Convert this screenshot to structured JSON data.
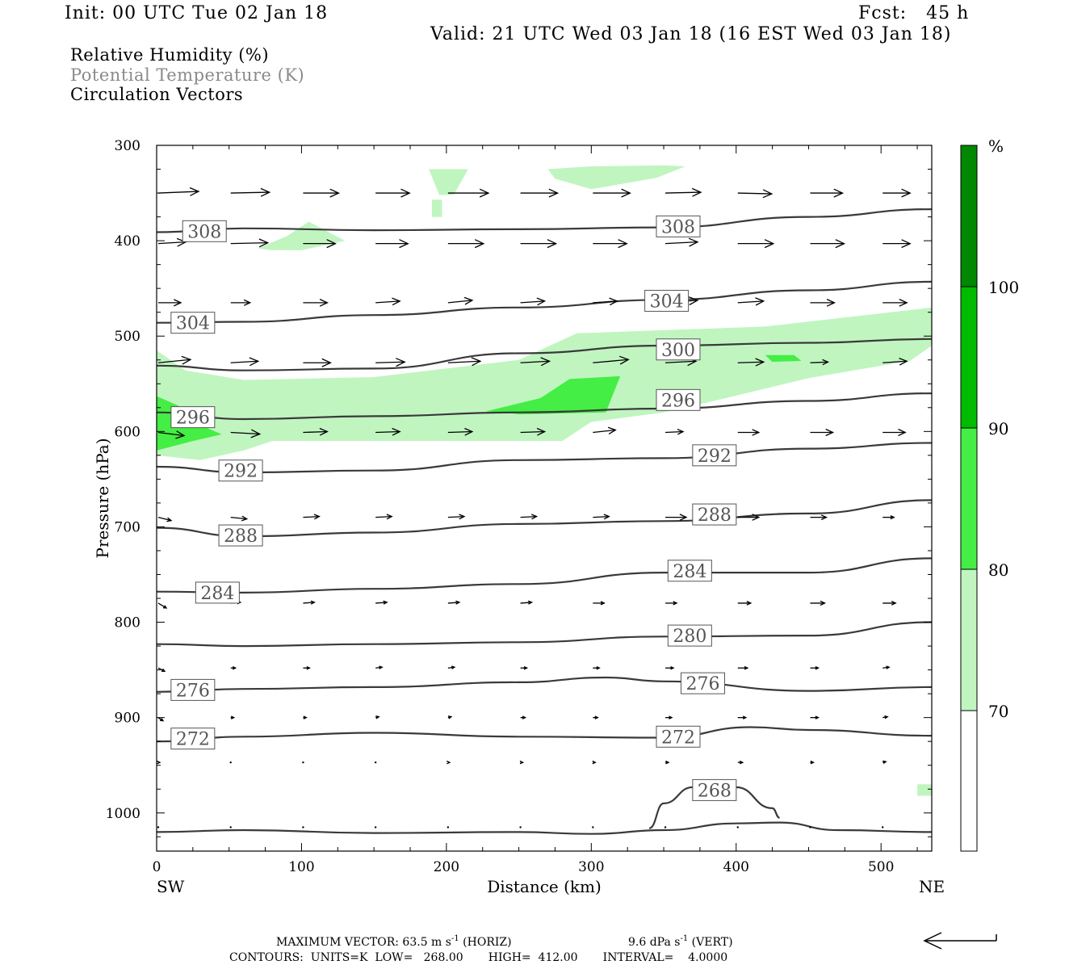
{
  "header": {
    "init": "Init: 00 UTC Tue 02 Jan 18",
    "fcst": "Fcst:   45 h",
    "valid": "Valid: 21 UTC Wed 03 Jan 18 (16 EST Wed 03 Jan 18)"
  },
  "legend_lines": [
    {
      "text": "Relative Humidity (%)",
      "color": "#000000"
    },
    {
      "text": "Potential Temperature (K)",
      "color": "#8a8a8a"
    },
    {
      "text": "Circulation Vectors",
      "color": "#000000"
    }
  ],
  "footer": {
    "max_vector": "MAXIMUM VECTOR:  63.5 m s",
    "max_vector_sup1": "-1",
    "max_vector_horiz": " (HORIZ)",
    "max_vector_vert": "9.6 dPa s",
    "max_vector_sup2": "-1",
    "max_vector_vert_tail": " (VERT)",
    "contours": "CONTOURS:  UNITS=K  LOW=   268.00       HIGH=  412.00       INTERVAL=    4.0000"
  },
  "colorbar": {
    "unit": "%",
    "levels": [
      {
        "value": 70,
        "color": "#c0f5c0"
      },
      {
        "value": 80,
        "color": "#44ee44"
      },
      {
        "value": 90,
        "color": "#00bb00"
      },
      {
        "value": 100,
        "color": "#008800"
      }
    ],
    "labels": [
      "70",
      "80",
      "90",
      "100"
    ]
  },
  "chart_data": {
    "type": "cross-section",
    "xlabel": "Distance (km)",
    "ylabel": "Pressure (hPa)",
    "xlim": [
      0,
      535
    ],
    "ylim": [
      1040,
      300
    ],
    "x_ticks": [
      0,
      100,
      200,
      300,
      400,
      500
    ],
    "x_tick_labels": [
      "0",
      "100",
      "200",
      "300",
      "400",
      "500"
    ],
    "y_ticks": [
      300,
      400,
      500,
      600,
      700,
      800,
      900,
      1000
    ],
    "y_tick_labels": [
      "300",
      "400",
      "500",
      "600",
      "700",
      "800",
      "900",
      "1000"
    ],
    "endpoints": {
      "left": "SW",
      "right": "NE"
    },
    "theta_contours": [
      {
        "label": "308",
        "points": [
          [
            0,
            391
          ],
          [
            60,
            387
          ],
          [
            150,
            389
          ],
          [
            250,
            388
          ],
          [
            350,
            386
          ],
          [
            450,
            375
          ],
          [
            535,
            367
          ]
        ]
      },
      {
        "label": "304",
        "points": [
          [
            0,
            486
          ],
          [
            60,
            485
          ],
          [
            150,
            478
          ],
          [
            250,
            470
          ],
          [
            350,
            462
          ],
          [
            450,
            452
          ],
          [
            535,
            443
          ]
        ]
      },
      {
        "label": "300",
        "points": [
          [
            0,
            531
          ],
          [
            60,
            536
          ],
          [
            150,
            534
          ],
          [
            250,
            518
          ],
          [
            350,
            510
          ],
          [
            450,
            507
          ],
          [
            535,
            503
          ]
        ]
      },
      {
        "label": "296",
        "points": [
          [
            0,
            580
          ],
          [
            60,
            587
          ],
          [
            150,
            584
          ],
          [
            250,
            580
          ],
          [
            350,
            576
          ],
          [
            450,
            568
          ],
          [
            535,
            560
          ]
        ]
      },
      {
        "label": "292",
        "points": [
          [
            0,
            637
          ],
          [
            60,
            643
          ],
          [
            150,
            641
          ],
          [
            250,
            630
          ],
          [
            350,
            628
          ],
          [
            450,
            618
          ],
          [
            535,
            612
          ]
        ]
      },
      {
        "label": "288",
        "points": [
          [
            0,
            701
          ],
          [
            60,
            710
          ],
          [
            150,
            706
          ],
          [
            250,
            697
          ],
          [
            350,
            694
          ],
          [
            450,
            686
          ],
          [
            535,
            672
          ]
        ]
      },
      {
        "label": "284",
        "points": [
          [
            0,
            768
          ],
          [
            60,
            769
          ],
          [
            150,
            765
          ],
          [
            250,
            760
          ],
          [
            350,
            748
          ],
          [
            450,
            748
          ],
          [
            535,
            733
          ]
        ]
      },
      {
        "label": "280",
        "points": [
          [
            0,
            823
          ],
          [
            60,
            825
          ],
          [
            150,
            823
          ],
          [
            250,
            821
          ],
          [
            350,
            815
          ],
          [
            450,
            814
          ],
          [
            535,
            800
          ]
        ]
      },
      {
        "label": "276",
        "points": [
          [
            0,
            873
          ],
          [
            60,
            870
          ],
          [
            150,
            868
          ],
          [
            250,
            863
          ],
          [
            310,
            858
          ],
          [
            350,
            862
          ],
          [
            450,
            872
          ],
          [
            535,
            868
          ]
        ]
      },
      {
        "label": "272",
        "points": [
          [
            0,
            925
          ],
          [
            60,
            920
          ],
          [
            150,
            916
          ],
          [
            250,
            920
          ],
          [
            350,
            921
          ],
          [
            410,
            910
          ],
          [
            450,
            913
          ],
          [
            535,
            919
          ]
        ]
      },
      {
        "label": "268",
        "points": [
          [
            340,
            1016
          ],
          [
            350,
            990
          ],
          [
            370,
            973
          ],
          [
            400,
            973
          ],
          [
            425,
            995
          ],
          [
            430,
            1005
          ]
        ]
      },
      {
        "label": "",
        "points": [
          [
            0,
            1020
          ],
          [
            60,
            1018
          ],
          [
            150,
            1021
          ],
          [
            250,
            1020
          ],
          [
            300,
            1022
          ],
          [
            350,
            1018
          ],
          [
            400,
            1011
          ],
          [
            430,
            1010
          ],
          [
            470,
            1018
          ],
          [
            535,
            1020
          ]
        ]
      }
    ],
    "rh_areas": [
      {
        "level": 70,
        "points": [
          [
            188,
            325
          ],
          [
            215,
            325
          ],
          [
            205,
            352
          ],
          [
            195,
            352
          ]
        ]
      },
      {
        "level": 70,
        "points": [
          [
            190,
            357
          ],
          [
            197,
            357
          ],
          [
            197,
            375
          ],
          [
            190,
            375
          ]
        ]
      },
      {
        "level": 70,
        "points": [
          [
            270,
            325
          ],
          [
            300,
            322
          ],
          [
            350,
            321
          ],
          [
            365,
            322
          ],
          [
            345,
            334
          ],
          [
            300,
            346
          ],
          [
            275,
            335
          ]
        ]
      },
      {
        "level": 70,
        "points": [
          [
            70,
            408
          ],
          [
            90,
            395
          ],
          [
            105,
            380
          ],
          [
            130,
            400
          ],
          [
            100,
            410
          ],
          [
            80,
            410
          ]
        ]
      },
      {
        "level": 70,
        "points": [
          [
            0,
            515
          ],
          [
            20,
            536
          ],
          [
            60,
            546
          ],
          [
            150,
            543
          ],
          [
            250,
            525
          ],
          [
            290,
            497
          ],
          [
            420,
            490
          ],
          [
            535,
            470
          ],
          [
            535,
            510
          ],
          [
            520,
            526
          ],
          [
            450,
            544
          ],
          [
            390,
            566
          ],
          [
            350,
            580
          ],
          [
            300,
            590
          ],
          [
            280,
            610
          ],
          [
            200,
            610
          ],
          [
            150,
            610
          ],
          [
            80,
            610
          ],
          [
            60,
            620
          ],
          [
            30,
            630
          ],
          [
            0,
            625
          ]
        ]
      },
      {
        "level": 80,
        "points": [
          [
            0,
            563
          ],
          [
            15,
            573
          ],
          [
            25,
            590
          ],
          [
            45,
            603
          ],
          [
            25,
            610
          ],
          [
            0,
            620
          ]
        ]
      },
      {
        "level": 80,
        "points": [
          [
            227,
            579
          ],
          [
            265,
            565
          ],
          [
            285,
            545
          ],
          [
            320,
            542
          ],
          [
            310,
            580
          ],
          [
            250,
            582
          ],
          [
            240,
            580
          ]
        ]
      },
      {
        "level": 80,
        "points": [
          [
            420,
            520
          ],
          [
            440,
            520
          ],
          [
            445,
            526
          ],
          [
            425,
            527
          ]
        ]
      },
      {
        "level": 70,
        "points": [
          [
            525,
            970
          ],
          [
            535,
            970
          ],
          [
            535,
            982
          ],
          [
            525,
            982
          ]
        ]
      }
    ],
    "vectors": [
      {
        "p": 350,
        "xs": [
          0,
          50,
          100,
          150,
          200,
          250,
          300,
          350,
          400,
          450,
          500
        ],
        "u": [
          50,
          48,
          44,
          42,
          50,
          46,
          46,
          44,
          42,
          40,
          34
        ],
        "w": [
          -2,
          -1,
          0,
          0,
          0,
          0,
          0,
          -1,
          1,
          0,
          0
        ]
      },
      {
        "p": 403,
        "xs": [
          0,
          50,
          100,
          150,
          200,
          250,
          300,
          350,
          400,
          450,
          500
        ],
        "u": [
          34,
          46,
          40,
          40,
          44,
          44,
          42,
          40,
          44,
          42,
          34
        ],
        "w": [
          -2,
          -1,
          0,
          0,
          0,
          0,
          0,
          -2,
          0,
          0,
          0
        ]
      },
      {
        "p": 465,
        "xs": [
          0,
          50,
          100,
          150,
          200,
          250,
          300,
          350,
          400,
          450,
          500
        ],
        "u": [
          28,
          24,
          30,
          30,
          30,
          30,
          30,
          40,
          32,
          30,
          30
        ],
        "w": [
          0,
          0,
          0,
          -2,
          -3,
          -2,
          -2,
          -3,
          -2,
          0,
          0
        ]
      },
      {
        "p": 528,
        "xs": [
          0,
          50,
          100,
          150,
          200,
          250,
          300,
          350,
          400,
          450,
          500
        ],
        "u": [
          40,
          34,
          34,
          36,
          40,
          36,
          44,
          38,
          32,
          22,
          30
        ],
        "w": [
          -4,
          -2,
          0,
          -1,
          -2,
          -2,
          -4,
          -2,
          -1,
          -1,
          -2
        ]
      },
      {
        "p": 601,
        "xs": [
          0,
          50,
          100,
          150,
          200,
          250,
          300,
          350,
          400,
          450,
          500
        ],
        "u": [
          32,
          36,
          30,
          30,
          30,
          30,
          28,
          22,
          26,
          28,
          28
        ],
        "w": [
          4,
          2,
          -1,
          -1,
          -1,
          -1,
          -3,
          -1,
          0,
          0,
          0
        ]
      },
      {
        "p": 690,
        "xs": [
          0,
          50,
          100,
          150,
          200,
          250,
          300,
          350,
          400,
          450,
          500
        ],
        "u": [
          16,
          20,
          20,
          20,
          20,
          20,
          20,
          26,
          26,
          20,
          14
        ],
        "w": [
          4,
          2,
          -1,
          -1,
          -1,
          -1,
          -1,
          0,
          0,
          0,
          0
        ]
      },
      {
        "p": 780,
        "xs": [
          0,
          50,
          100,
          150,
          200,
          250,
          300,
          350,
          400,
          450,
          500
        ],
        "u": [
          10,
          12,
          14,
          14,
          14,
          14,
          14,
          14,
          16,
          18,
          16
        ],
        "w": [
          6,
          -1,
          -1,
          -1,
          -1,
          -1,
          0,
          0,
          0,
          0,
          0
        ]
      },
      {
        "p": 848,
        "xs": [
          0,
          50,
          100,
          150,
          200,
          250,
          300,
          350,
          400,
          450,
          500
        ],
        "u": [
          8,
          6,
          8,
          8,
          8,
          8,
          8,
          10,
          12,
          10,
          8
        ],
        "w": [
          4,
          0,
          0,
          -1,
          -1,
          0,
          0,
          0,
          0,
          0,
          -1
        ]
      },
      {
        "p": 900,
        "xs": [
          0,
          50,
          100,
          150,
          200,
          250,
          300,
          350,
          400,
          450,
          500
        ],
        "u": [
          6,
          4,
          4,
          4,
          4,
          6,
          6,
          8,
          10,
          10,
          6
        ],
        "w": [
          4,
          0,
          0,
          -1,
          -1,
          0,
          0,
          0,
          0,
          0,
          -1
        ]
      },
      {
        "p": 947,
        "xs": [
          0,
          50,
          100,
          150,
          200,
          250,
          300,
          350,
          400,
          450,
          500
        ],
        "u": [
          2,
          1,
          1,
          1,
          2,
          3,
          3,
          4,
          6,
          4,
          4
        ],
        "w": [
          0,
          0,
          0,
          0,
          0,
          0,
          0,
          0,
          0,
          0,
          -1
        ]
      },
      {
        "p": 1015,
        "xs": [
          0,
          50,
          100,
          150,
          200,
          250,
          300,
          350,
          400,
          450,
          500
        ],
        "u": [
          0,
          1,
          1,
          1,
          1,
          1,
          1,
          1,
          1,
          1,
          1
        ],
        "w": [
          0,
          0,
          0,
          0,
          0,
          0,
          0,
          0,
          0,
          0,
          0
        ]
      }
    ],
    "contour_labels": [
      {
        "text": "308",
        "x": 33,
        "p": 390
      },
      {
        "text": "308",
        "x": 360,
        "p": 385
      },
      {
        "text": "304",
        "x": 25,
        "p": 486
      },
      {
        "text": "304",
        "x": 352,
        "p": 463
      },
      {
        "text": "300",
        "x": 360,
        "p": 514
      },
      {
        "text": "296",
        "x": 25,
        "p": 585
      },
      {
        "text": "296",
        "x": 360,
        "p": 567
      },
      {
        "text": "292",
        "x": 58,
        "p": 641
      },
      {
        "text": "292",
        "x": 385,
        "p": 625
      },
      {
        "text": "288",
        "x": 58,
        "p": 709
      },
      {
        "text": "288",
        "x": 385,
        "p": 687
      },
      {
        "text": "284",
        "x": 42,
        "p": 769
      },
      {
        "text": "284",
        "x": 368,
        "p": 746
      },
      {
        "text": "280",
        "x": 368,
        "p": 814
      },
      {
        "text": "276",
        "x": 25,
        "p": 871
      },
      {
        "text": "276",
        "x": 377,
        "p": 864
      },
      {
        "text": "272",
        "x": 25,
        "p": 922
      },
      {
        "text": "272",
        "x": 360,
        "p": 920
      },
      {
        "text": "268",
        "x": 385,
        "p": 976
      }
    ]
  }
}
